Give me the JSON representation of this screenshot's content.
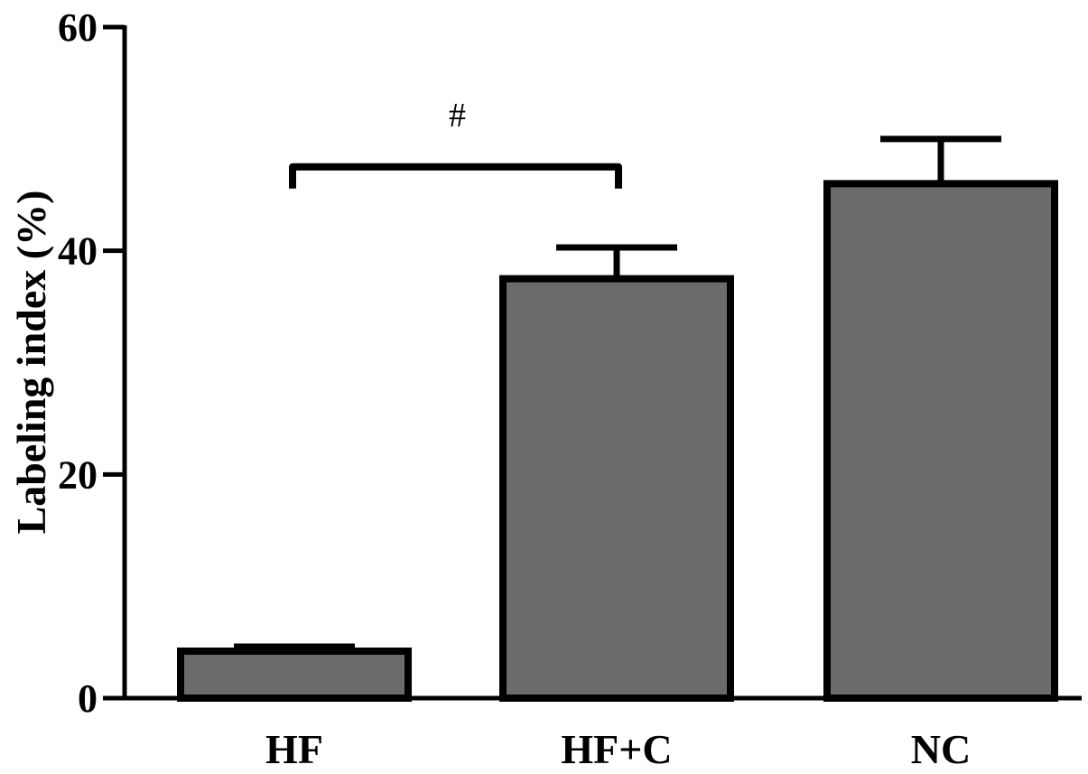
{
  "chart_data": {
    "type": "bar",
    "title": "",
    "xlabel": "",
    "ylabel": "Labeling index (%)",
    "ylim": [
      0,
      60
    ],
    "yticks": [
      0,
      20,
      40,
      60
    ],
    "ytick_labels": [
      "0",
      "20",
      "40",
      "60"
    ],
    "grid": false,
    "legend": "none",
    "categories": [
      "HF",
      "HF+C",
      "NC"
    ],
    "values": [
      4.2,
      37.5,
      46.0
    ],
    "error_upper": [
      0.4,
      2.8,
      4.0
    ],
    "bar_color": "#6b6b6b",
    "annotations": [
      {
        "text": "#",
        "from_category": "HF",
        "to_category": "HF+C",
        "level": 47.5
      }
    ]
  }
}
